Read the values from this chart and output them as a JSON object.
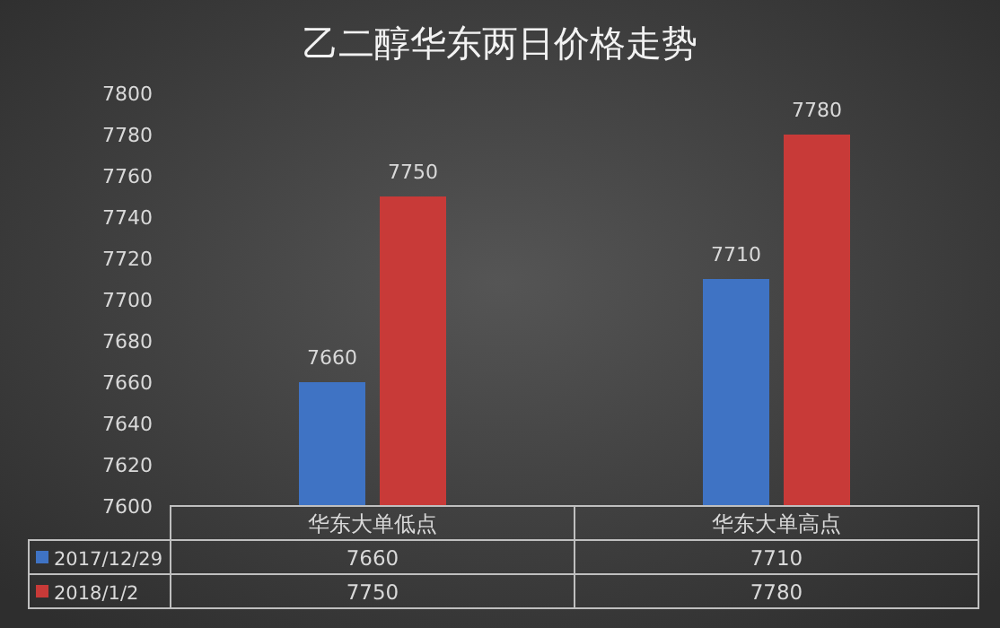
{
  "chart_data": {
    "type": "bar",
    "title": "乙二醇华东两日价格走势",
    "categories": [
      "华东大单低点",
      "华东大单高点"
    ],
    "series": [
      {
        "name": "2017/12/29",
        "color": "#3f73c4",
        "values": [
          7660,
          7710
        ]
      },
      {
        "name": "2018/1/2",
        "color": "#c83a38",
        "values": [
          7750,
          7780
        ]
      }
    ],
    "ylim": [
      7600,
      7800
    ],
    "yticks": [
      7600,
      7620,
      7640,
      7660,
      7680,
      7700,
      7720,
      7740,
      7760,
      7780,
      7800
    ],
    "annotations": [
      {
        "text": "7660",
        "x": "华东大单低点",
        "y": 7660
      },
      {
        "text": "7750",
        "x": "华东大单低点",
        "y": 7750
      },
      {
        "text": "7710",
        "x": "华东大单高点",
        "y": 7710
      },
      {
        "text": "7780",
        "x": "华东大单高点",
        "y": 7780
      }
    ],
    "data_labels": true,
    "legend": "bottom"
  }
}
